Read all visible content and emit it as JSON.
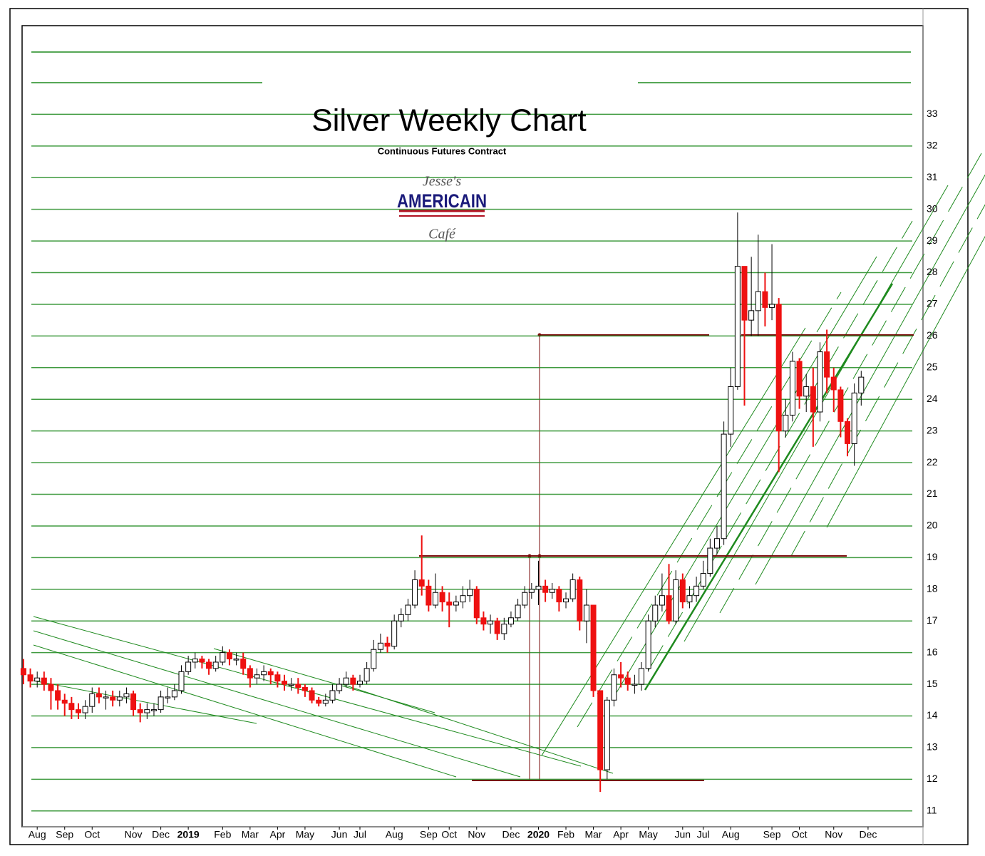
{
  "chart_data": {
    "type": "candlestick",
    "title": "Silver Weekly Chart",
    "subtitle": "Continuous Futures Contract",
    "logo": [
      "Jesse's",
      "AMERICAIN",
      "Café"
    ],
    "up_color": "#ffffff",
    "down_color": "#ee1111",
    "grid": true,
    "grid_color": "#1e8a1e",
    "ylim": [
      10.5,
      35.8
    ],
    "yticks": [
      11,
      12,
      13,
      14,
      15,
      16,
      17,
      18,
      19,
      20,
      21,
      22,
      23,
      24,
      25,
      26,
      27,
      28,
      29,
      30,
      31,
      32,
      33
    ],
    "xlim": [
      -0.2,
      131
    ],
    "xticks": [
      {
        "value": 2,
        "label": "Aug"
      },
      {
        "value": 6,
        "label": "Sep"
      },
      {
        "value": 10,
        "label": "Oct"
      },
      {
        "value": 16,
        "label": "Nov"
      },
      {
        "value": 20,
        "label": "Dec"
      },
      {
        "value": 24,
        "label": "2019"
      },
      {
        "value": 29,
        "label": "Feb"
      },
      {
        "value": 33,
        "label": "Mar"
      },
      {
        "value": 37,
        "label": "Apr"
      },
      {
        "value": 41,
        "label": "May"
      },
      {
        "value": 46,
        "label": "Jun"
      },
      {
        "value": 49,
        "label": "Jul"
      },
      {
        "value": 54,
        "label": "Aug"
      },
      {
        "value": 59,
        "label": "Sep"
      },
      {
        "value": 62,
        "label": "Oct"
      },
      {
        "value": 66,
        "label": "Nov"
      },
      {
        "value": 71,
        "label": "Dec"
      },
      {
        "value": 75,
        "label": "2020"
      },
      {
        "value": 79,
        "label": "Feb"
      },
      {
        "value": 83,
        "label": "Mar"
      },
      {
        "value": 87,
        "label": "Apr"
      },
      {
        "value": 91,
        "label": "May"
      },
      {
        "value": 96,
        "label": "Jun"
      },
      {
        "value": 99,
        "label": "Jul"
      },
      {
        "value": 103,
        "label": "Aug"
      },
      {
        "value": 109,
        "label": "Sep"
      },
      {
        "value": 113,
        "label": "Oct"
      },
      {
        "value": 118,
        "label": "Nov"
      },
      {
        "value": 123,
        "label": "Dec"
      }
    ],
    "open": [
      15.5,
      15.3,
      15.1,
      15.2,
      15.0,
      14.8,
      14.5,
      14.4,
      14.2,
      14.1,
      14.3,
      14.7,
      14.6,
      14.6,
      14.5,
      14.6,
      14.7,
      14.2,
      14.1,
      14.2,
      14.2,
      14.6,
      14.6,
      14.8,
      15.4,
      15.7,
      15.8,
      15.7,
      15.5,
      15.7,
      16.0,
      15.8,
      15.8,
      15.5,
      15.2,
      15.3,
      15.4,
      15.3,
      15.1,
      15.0,
      15.0,
      14.9,
      14.8,
      14.5,
      14.4,
      14.5,
      14.8,
      15.0,
      15.2,
      15.0,
      15.1,
      15.5,
      16.1,
      16.3,
      16.2,
      17.0,
      17.2,
      17.5,
      18.3,
      18.1,
      17.5,
      17.9,
      17.6,
      17.5,
      17.6,
      17.8,
      18.0,
      17.1,
      16.9,
      17.0,
      16.6,
      16.9,
      17.1,
      17.5,
      17.9,
      18.0,
      18.1,
      17.9,
      18.0,
      17.6,
      17.7,
      18.3,
      17.0,
      17.5,
      14.8,
      12.3,
      14.5,
      15.3,
      15.2,
      15.0,
      15.0,
      15.5,
      17.0,
      17.5,
      17.8,
      17.0,
      18.3,
      17.6,
      17.8,
      18.1,
      18.5,
      19.3,
      19.6,
      22.9,
      24.4,
      28.2,
      26.5,
      26.8,
      27.4,
      26.9,
      27.0,
      23.0,
      23.5,
      25.2,
      24.1,
      24.4,
      23.6,
      25.5,
      24.7,
      24.3,
      23.3,
      22.6,
      24.2
    ],
    "high": [
      15.8,
      15.5,
      15.4,
      15.4,
      15.2,
      15.0,
      14.7,
      14.6,
      14.4,
      14.5,
      14.9,
      14.9,
      14.8,
      14.8,
      14.8,
      14.9,
      14.8,
      14.4,
      14.4,
      14.4,
      14.8,
      14.9,
      15.0,
      15.6,
      15.9,
      16.0,
      15.9,
      15.8,
      15.9,
      16.2,
      16.1,
      16.0,
      16.0,
      15.6,
      15.5,
      15.6,
      15.5,
      15.4,
      15.3,
      15.2,
      15.2,
      15.0,
      14.9,
      14.6,
      14.7,
      15.0,
      15.2,
      15.4,
      15.3,
      15.3,
      15.7,
      16.4,
      16.6,
      16.5,
      17.2,
      17.4,
      17.7,
      18.6,
      19.7,
      18.3,
      18.5,
      18.1,
      17.9,
      17.8,
      18.1,
      18.3,
      18.1,
      17.3,
      17.2,
      17.1,
      17.1,
      17.3,
      17.7,
      18.1,
      18.2,
      18.9,
      18.3,
      18.2,
      18.1,
      17.9,
      18.5,
      18.4,
      18.0,
      17.5,
      14.8,
      14.6,
      15.5,
      15.7,
      15.4,
      15.3,
      15.7,
      17.2,
      17.8,
      18.5,
      18.8,
      18.6,
      18.5,
      18.1,
      18.4,
      18.9,
      19.6,
      20.0,
      23.3,
      25.0,
      29.9,
      28.2,
      28.5,
      29.2,
      28.0,
      28.9,
      27.2,
      24.0,
      25.5,
      25.3,
      24.8,
      25.0,
      25.8,
      26.2,
      25.0,
      24.4,
      23.4,
      24.5,
      24.9
    ],
    "low": [
      15.0,
      14.9,
      14.9,
      14.8,
      14.2,
      14.2,
      14.0,
      13.9,
      13.9,
      13.9,
      14.1,
      14.4,
      14.2,
      14.3,
      14.3,
      14.4,
      14.0,
      13.8,
      13.9,
      14.0,
      14.1,
      14.4,
      14.5,
      14.7,
      15.3,
      15.5,
      15.5,
      15.3,
      15.4,
      15.6,
      15.6,
      15.6,
      15.3,
      14.9,
      15.0,
      15.1,
      15.0,
      14.9,
      14.8,
      14.8,
      14.7,
      14.6,
      14.4,
      14.3,
      14.3,
      14.4,
      14.7,
      14.9,
      14.8,
      14.9,
      15.0,
      15.4,
      16.0,
      16.0,
      16.1,
      16.8,
      17.0,
      17.4,
      17.8,
      17.3,
      17.4,
      17.3,
      16.8,
      17.3,
      17.4,
      17.6,
      16.9,
      16.7,
      16.6,
      16.4,
      16.4,
      16.8,
      17.0,
      17.4,
      17.7,
      17.5,
      17.6,
      17.7,
      17.3,
      17.4,
      17.6,
      16.7,
      16.3,
      14.6,
      11.6,
      12.0,
      14.3,
      14.9,
      14.8,
      14.7,
      14.8,
      15.4,
      16.8,
      17.3,
      16.9,
      16.9,
      17.4,
      17.4,
      17.6,
      18.0,
      18.4,
      19.1,
      19.4,
      22.5,
      24.3,
      23.8,
      26.0,
      26.0,
      26.3,
      26.5,
      21.7,
      22.8,
      23.3,
      23.7,
      23.6,
      22.5,
      23.3,
      24.2,
      23.6,
      22.8,
      22.2,
      21.9,
      23.8
    ],
    "close": [
      15.3,
      15.1,
      15.2,
      15.0,
      14.8,
      14.5,
      14.4,
      14.2,
      14.1,
      14.3,
      14.7,
      14.6,
      14.6,
      14.5,
      14.6,
      14.7,
      14.2,
      14.1,
      14.2,
      14.2,
      14.6,
      14.6,
      14.8,
      15.4,
      15.7,
      15.8,
      15.7,
      15.5,
      15.7,
      16.0,
      15.8,
      15.8,
      15.5,
      15.2,
      15.3,
      15.4,
      15.3,
      15.1,
      15.0,
      15.0,
      14.9,
      14.8,
      14.5,
      14.4,
      14.5,
      14.8,
      15.0,
      15.2,
      15.0,
      15.1,
      15.5,
      16.1,
      16.3,
      16.2,
      17.0,
      17.2,
      17.5,
      18.3,
      18.1,
      17.5,
      17.9,
      17.6,
      17.5,
      17.6,
      17.8,
      18.0,
      17.1,
      16.9,
      17.0,
      16.6,
      16.9,
      17.1,
      17.5,
      17.9,
      18.0,
      18.1,
      17.9,
      18.0,
      17.6,
      17.7,
      18.3,
      17.0,
      17.5,
      14.8,
      12.3,
      14.5,
      15.3,
      15.2,
      15.0,
      15.0,
      15.5,
      17.0,
      17.5,
      17.8,
      17.0,
      18.3,
      17.6,
      17.8,
      18.1,
      18.5,
      19.3,
      19.6,
      22.9,
      24.4,
      28.2,
      26.5,
      26.8,
      27.4,
      26.9,
      27.0,
      23.0,
      23.5,
      25.2,
      24.1,
      24.4,
      23.6,
      25.5,
      24.7,
      24.3,
      23.3,
      22.6,
      24.2,
      24.7
    ]
  }
}
